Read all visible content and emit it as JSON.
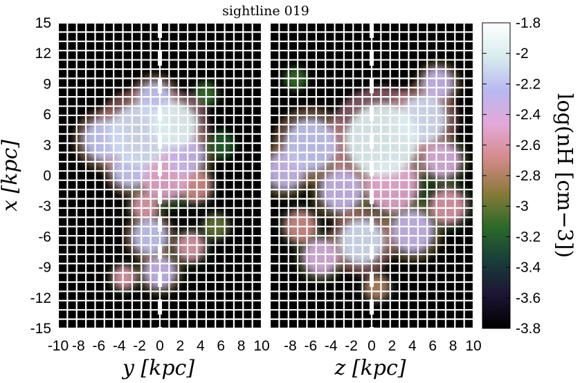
{
  "chart_data": {
    "type": "heatmap",
    "title": "sightline 019",
    "panels": [
      {
        "name": "left-panel",
        "xlabel": "y [kpc]",
        "ylabel": "x [kpc]",
        "xlim": [
          -10,
          10
        ],
        "ylim": [
          -15,
          15
        ],
        "xticks": [
          "-10",
          "-8",
          "-6",
          "-4",
          "-2",
          "0",
          "2",
          "4",
          "6",
          "8",
          "10"
        ],
        "yticks": [
          "15",
          "12",
          "9",
          "6",
          "3",
          "0",
          "-3",
          "-6",
          "-9",
          "-12",
          "-15"
        ],
        "sightline_x": 0,
        "blobs": [
          {
            "x": -2.0,
            "y": 4.0,
            "r": 3.6,
            "v": -2.1
          },
          {
            "x": -5.5,
            "y": 3.5,
            "r": 2.4,
            "v": -2.2
          },
          {
            "x": 1.5,
            "y": 5.0,
            "r": 2.6,
            "v": -2.0
          },
          {
            "x": 2.5,
            "y": 2.0,
            "r": 2.2,
            "v": -2.3
          },
          {
            "x": 0.5,
            "y": 0.0,
            "r": 2.8,
            "v": -2.5
          },
          {
            "x": -3.0,
            "y": 0.5,
            "r": 2.0,
            "v": -2.2
          },
          {
            "x": 3.5,
            "y": -1.0,
            "r": 1.8,
            "v": -2.7
          },
          {
            "x": -0.5,
            "y": 7.5,
            "r": 2.0,
            "v": -2.2
          },
          {
            "x": -1.0,
            "y": -6.0,
            "r": 2.0,
            "v": -2.2
          },
          {
            "x": 0.0,
            "y": -9.5,
            "r": 1.8,
            "v": -2.3
          },
          {
            "x": 3.0,
            "y": -7.0,
            "r": 1.6,
            "v": -2.6
          },
          {
            "x": -1.5,
            "y": -3.0,
            "r": 1.5,
            "v": -2.6
          },
          {
            "x": 5.5,
            "y": -5.0,
            "r": 1.4,
            "v": -3.0
          },
          {
            "x": -3.5,
            "y": -10.0,
            "r": 1.3,
            "v": -2.6
          },
          {
            "x": 4.5,
            "y": 8.0,
            "r": 1.3,
            "v": -3.1
          },
          {
            "x": 6.0,
            "y": 3.0,
            "r": 1.5,
            "v": -3.2
          }
        ]
      },
      {
        "name": "right-panel",
        "xlabel": "z [kpc]",
        "ylabel": "",
        "xlim": [
          -10,
          10
        ],
        "ylim": [
          -15,
          15
        ],
        "xticks": [
          "-8",
          "-6",
          "-4",
          "-2",
          "0",
          "2",
          "4",
          "6",
          "8",
          "10"
        ],
        "yticks": [],
        "sightline_x": 0,
        "blobs": [
          {
            "x": 1.0,
            "y": 3.5,
            "r": 4.2,
            "v": -2.0
          },
          {
            "x": -6.0,
            "y": 3.0,
            "r": 3.0,
            "v": -2.2
          },
          {
            "x": -8.5,
            "y": 0.5,
            "r": 2.2,
            "v": -2.3
          },
          {
            "x": 5.0,
            "y": 5.5,
            "r": 2.8,
            "v": -2.1
          },
          {
            "x": 6.5,
            "y": 9.0,
            "r": 1.8,
            "v": -2.3
          },
          {
            "x": 2.0,
            "y": -1.0,
            "r": 3.0,
            "v": -2.5
          },
          {
            "x": -3.0,
            "y": -1.5,
            "r": 2.4,
            "v": -2.3
          },
          {
            "x": -1.0,
            "y": -6.5,
            "r": 2.6,
            "v": -2.1
          },
          {
            "x": 4.0,
            "y": -5.5,
            "r": 2.4,
            "v": -2.3
          },
          {
            "x": -5.0,
            "y": -8.0,
            "r": 2.0,
            "v": -2.4
          },
          {
            "x": 7.5,
            "y": -3.0,
            "r": 2.0,
            "v": -2.6
          },
          {
            "x": 7.0,
            "y": 1.5,
            "r": 2.0,
            "v": -2.4
          },
          {
            "x": -7.0,
            "y": -5.0,
            "r": 1.8,
            "v": -2.7
          },
          {
            "x": 0.5,
            "y": -11.0,
            "r": 1.4,
            "v": -2.8
          },
          {
            "x": -7.5,
            "y": 9.5,
            "r": 1.2,
            "v": -3.1
          }
        ]
      }
    ],
    "colorbar": {
      "label": "log(n_H [cm^-3])",
      "label_math": "log(nH [cm−3])",
      "range": [
        -3.8,
        -1.8
      ],
      "ticks": [
        "-1.8",
        "-2",
        "-2.2",
        "-2.4",
        "-2.6",
        "-2.8",
        "-3",
        "-3.2",
        "-3.4",
        "-3.6",
        "-3.8"
      ],
      "colormap": [
        "#000000",
        "#1e1434",
        "#183e3a",
        "#2c6a28",
        "#8a7a3a",
        "#d48a8a",
        "#e4a8d8",
        "#b8b8f0",
        "#d8ecee",
        "#ffffff"
      ]
    },
    "grid": true,
    "grid_color": "#ffffff"
  }
}
